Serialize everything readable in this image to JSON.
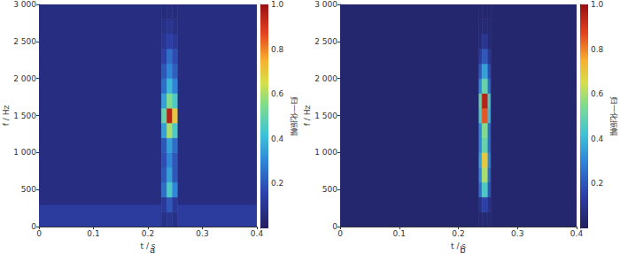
{
  "chart_data": [
    {
      "type": "spectrogram",
      "title": "a",
      "x_label": "t / s",
      "y_label": "f / Hz",
      "xlim": [
        0,
        0.4
      ],
      "xticks": [
        0,
        0.1,
        0.2,
        0.3,
        0.4
      ],
      "ylim": [
        0,
        3000
      ],
      "yticks": [
        0,
        500,
        {
          "value": 1000,
          "label": "1 000"
        },
        {
          "value": 1500,
          "label": "1 500"
        },
        {
          "value": 2000,
          "label": "2 000"
        },
        {
          "value": 2500,
          "label": "2 500"
        },
        {
          "value": 3000,
          "label": "3 000"
        }
      ],
      "grid": false,
      "columns": [
        {
          "t": [
            0,
            0.225
          ],
          "f": [
            0,
            300,
            3000
          ],
          "amp": [
            0.13,
            0.07
          ]
        },
        {
          "t": [
            0.225,
            0.235
          ],
          "f": [
            0,
            200,
            400,
            600,
            800,
            1000,
            1200,
            1400,
            1600,
            1800,
            2000,
            2200,
            2400,
            2600,
            2800,
            3000
          ],
          "amp": [
            0.08,
            0.12,
            0.25,
            0.2,
            0.18,
            0.2,
            0.35,
            0.5,
            0.35,
            0.25,
            0.2,
            0.15,
            0.1,
            0.08,
            0.06
          ]
        },
        {
          "t": [
            0.235,
            0.245
          ],
          "f": [
            0,
            200,
            400,
            600,
            800,
            1000,
            1200,
            1400,
            1600,
            1800,
            2000,
            2200,
            2400,
            2600,
            2800,
            3000
          ],
          "amp": [
            0.1,
            0.2,
            0.45,
            0.35,
            0.3,
            0.35,
            0.6,
            0.95,
            0.55,
            0.4,
            0.3,
            0.25,
            0.15,
            0.1,
            0.07
          ]
        },
        {
          "t": [
            0.245,
            0.255
          ],
          "f": [
            0,
            200,
            400,
            600,
            800,
            1000,
            1200,
            1400,
            1600,
            1800,
            2000,
            2200,
            2400,
            2600,
            2800,
            3000
          ],
          "amp": [
            0.08,
            0.12,
            0.3,
            0.2,
            0.2,
            0.25,
            0.45,
            0.7,
            0.45,
            0.3,
            0.22,
            0.18,
            0.12,
            0.08,
            0.06
          ]
        },
        {
          "t": [
            0.255,
            0.4
          ],
          "f": [
            0,
            300,
            3000
          ],
          "amp": [
            0.13,
            0.07
          ]
        }
      ],
      "colorbar": {
        "range": [
          0,
          1
        ],
        "ticks": [
          0.2,
          0.4,
          0.6,
          0.8,
          {
            "value": 1,
            "label": "1.0"
          }
        ],
        "label": "归一化振幅"
      }
    },
    {
      "type": "spectrogram",
      "title": "b",
      "x_label": "t / s",
      "y_label": "f / Hz",
      "xlim": [
        0,
        0.4
      ],
      "xticks": [
        0,
        0.1,
        0.2,
        0.3,
        0.4
      ],
      "ylim": [
        0,
        3000
      ],
      "yticks": [
        0,
        500,
        {
          "value": 1000,
          "label": "1 000"
        },
        {
          "value": 1500,
          "label": "1 500"
        },
        {
          "value": 2000,
          "label": "2 000"
        },
        {
          "value": 2500,
          "label": "2 500"
        },
        {
          "value": 3000,
          "label": "3 000"
        }
      ],
      "grid": false,
      "columns": [
        {
          "t": [
            0,
            0.235
          ],
          "f": [
            0,
            3000
          ],
          "amp": [
            0.03
          ]
        },
        {
          "t": [
            0.235,
            0.24
          ],
          "f": [
            0,
            200,
            400,
            600,
            800,
            1000,
            1200,
            1400,
            1600,
            1800,
            2000,
            2200,
            2400,
            2600,
            2800,
            3000
          ],
          "amp": [
            0.04,
            0.08,
            0.25,
            0.3,
            0.35,
            0.3,
            0.3,
            0.45,
            0.5,
            0.3,
            0.2,
            0.12,
            0.06,
            0.04,
            0.03
          ]
        },
        {
          "t": [
            0.24,
            0.25
          ],
          "f": [
            0,
            200,
            400,
            600,
            800,
            1000,
            1200,
            1400,
            1600,
            1800,
            2000,
            2200,
            2400,
            2600,
            2800,
            3000
          ],
          "amp": [
            0.05,
            0.15,
            0.45,
            0.6,
            0.7,
            0.5,
            0.55,
            0.85,
            0.95,
            0.5,
            0.35,
            0.2,
            0.1,
            0.05,
            0.03
          ]
        },
        {
          "t": [
            0.25,
            0.255
          ],
          "f": [
            0,
            200,
            400,
            600,
            800,
            1000,
            1200,
            1400,
            1600,
            1800,
            2000,
            2200,
            2400,
            2600,
            2800,
            3000
          ],
          "amp": [
            0.04,
            0.08,
            0.2,
            0.25,
            0.3,
            0.25,
            0.25,
            0.4,
            0.45,
            0.25,
            0.18,
            0.1,
            0.05,
            0.04,
            0.03
          ]
        },
        {
          "t": [
            0.255,
            0.4
          ],
          "f": [
            0,
            3000
          ],
          "amp": [
            0.03
          ]
        }
      ],
      "colorbar": {
        "range": [
          0,
          1
        ],
        "ticks": [
          0.2,
          0.4,
          0.6,
          0.8,
          {
            "value": 1,
            "label": "1.0"
          }
        ],
        "label": "归一化振幅"
      }
    }
  ]
}
